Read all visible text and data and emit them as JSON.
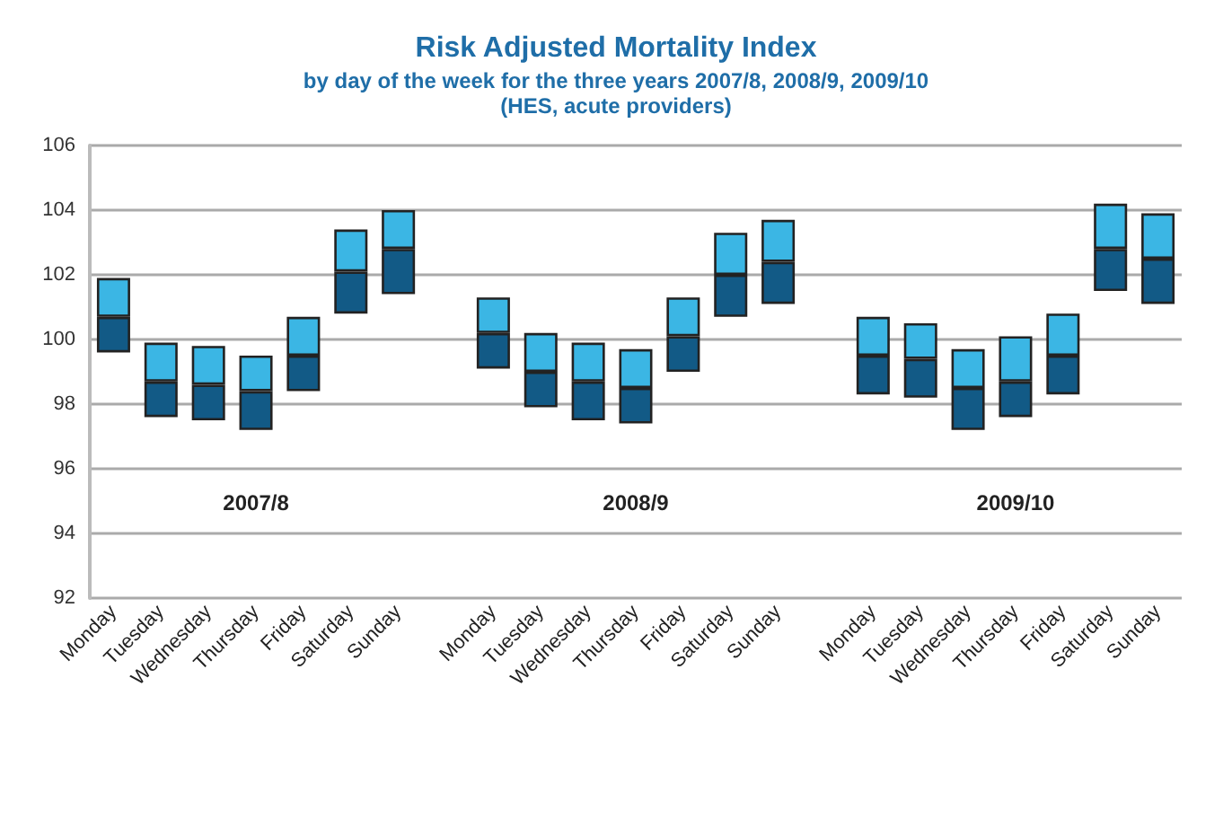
{
  "chart_data": {
    "type": "bar",
    "title": "Risk Adjusted Mortality Index",
    "subtitle": "by day of the week for the three years 2007/8, 2008/9, 2009/10\n(HES, acute providers)",
    "annotations": [
      "2007/8",
      "2008/9",
      "2009/10"
    ],
    "categories": [
      "Monday",
      "Tuesday",
      "Wednesday",
      "Thursday",
      "Friday",
      "Saturday",
      "Sunday",
      null,
      "Monday",
      "Tuesday",
      "Wednesday",
      "Thursday",
      "Friday",
      "Saturday",
      "Sunday",
      null,
      "Monday",
      "Tuesday",
      "Wednesday",
      "Thursday",
      "Friday",
      "Saturday",
      "Sunday"
    ],
    "series": [
      {
        "color": "#125a86",
        "base": [
          99.6,
          97.6,
          97.5,
          97.2,
          98.4,
          100.8,
          101.4,
          null,
          99.1,
          97.9,
          97.5,
          97.4,
          99.0,
          100.7,
          101.1,
          null,
          98.3,
          98.2,
          97.2,
          97.6,
          98.3,
          101.5,
          101.1
        ],
        "values": [
          1.1,
          1.1,
          1.1,
          1.2,
          1.1,
          1.3,
          1.4,
          null,
          1.1,
          1.1,
          1.2,
          1.1,
          1.1,
          1.3,
          1.3,
          null,
          1.2,
          1.2,
          1.3,
          1.1,
          1.2,
          1.3,
          1.4
        ]
      },
      {
        "color": "#3bb6e4",
        "base": [
          100.7,
          98.7,
          98.6,
          98.4,
          99.5,
          102.1,
          102.8,
          null,
          100.2,
          99.0,
          98.7,
          98.5,
          100.1,
          102.0,
          102.4,
          null,
          99.5,
          99.4,
          98.5,
          98.7,
          99.5,
          102.8,
          102.5
        ],
        "values": [
          1.2,
          1.2,
          1.2,
          1.1,
          1.2,
          1.3,
          1.2,
          null,
          1.1,
          1.2,
          1.2,
          1.2,
          1.2,
          1.3,
          1.3,
          null,
          1.2,
          1.1,
          1.2,
          1.4,
          1.3,
          1.4,
          1.4
        ]
      }
    ],
    "ylim": [
      92,
      106
    ],
    "yticks": [
      92,
      94,
      96,
      98,
      100,
      102,
      104,
      106
    ],
    "grid": "y"
  }
}
